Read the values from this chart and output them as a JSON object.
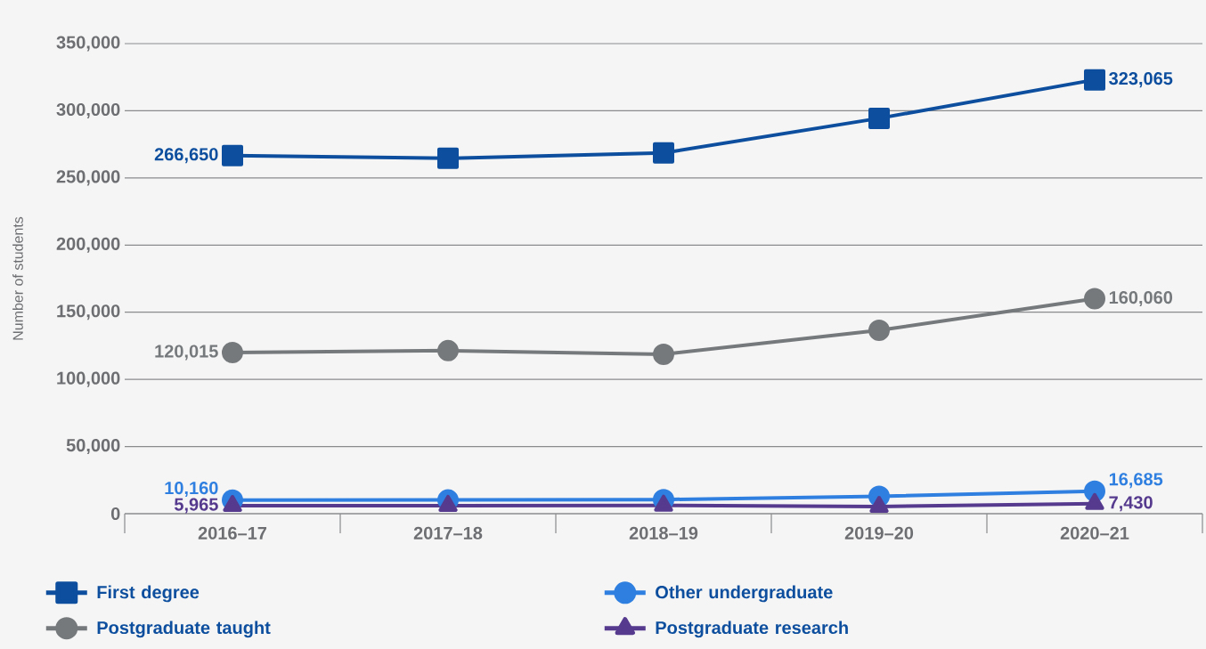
{
  "chart_data": {
    "type": "line",
    "ylabel": "Number of students",
    "categories": [
      "2016–17",
      "2017–18",
      "2018–19",
      "2019–20",
      "2020–21"
    ],
    "series": [
      {
        "name": "First degree",
        "color": "#0d4f9e",
        "marker": "square",
        "values": [
          266650,
          264600,
          268600,
          294400,
          323065
        ],
        "value_labels": [
          "266,650",
          null,
          null,
          null,
          "323,065"
        ]
      },
      {
        "name": "Other undergraduate",
        "color": "#2e7fe0",
        "marker": "circle",
        "values": [
          10160,
          10200,
          10500,
          13000,
          16685
        ],
        "value_labels": [
          "10,160",
          null,
          null,
          null,
          "16,685"
        ]
      },
      {
        "name": "Postgraduate taught",
        "color": "#76797c",
        "marker": "circle",
        "values": [
          120015,
          121400,
          118700,
          136600,
          160060
        ],
        "value_labels": [
          "120,015",
          null,
          null,
          null,
          "160,060"
        ]
      },
      {
        "name": "Postgraduate research",
        "color": "#553a8e",
        "marker": "triangle",
        "values": [
          5965,
          6000,
          6200,
          5300,
          7430
        ],
        "value_labels": [
          "5,965",
          null,
          null,
          null,
          "7,430"
        ]
      }
    ],
    "ylim": [
      0,
      350000
    ],
    "yticks": [
      0,
      {
        "value": 50000,
        "label": "50,000"
      },
      {
        "value": 100000,
        "label": "100,000"
      },
      {
        "value": 150000,
        "label": "150,000"
      },
      {
        "value": 200000,
        "label": "200,000"
      },
      {
        "value": 250000,
        "label": "250,000"
      },
      {
        "value": 300000,
        "label": "300,000"
      },
      {
        "value": 350000,
        "label": "350,000"
      }
    ],
    "grid": "y",
    "legend": "bottom",
    "line_style": "solid"
  }
}
